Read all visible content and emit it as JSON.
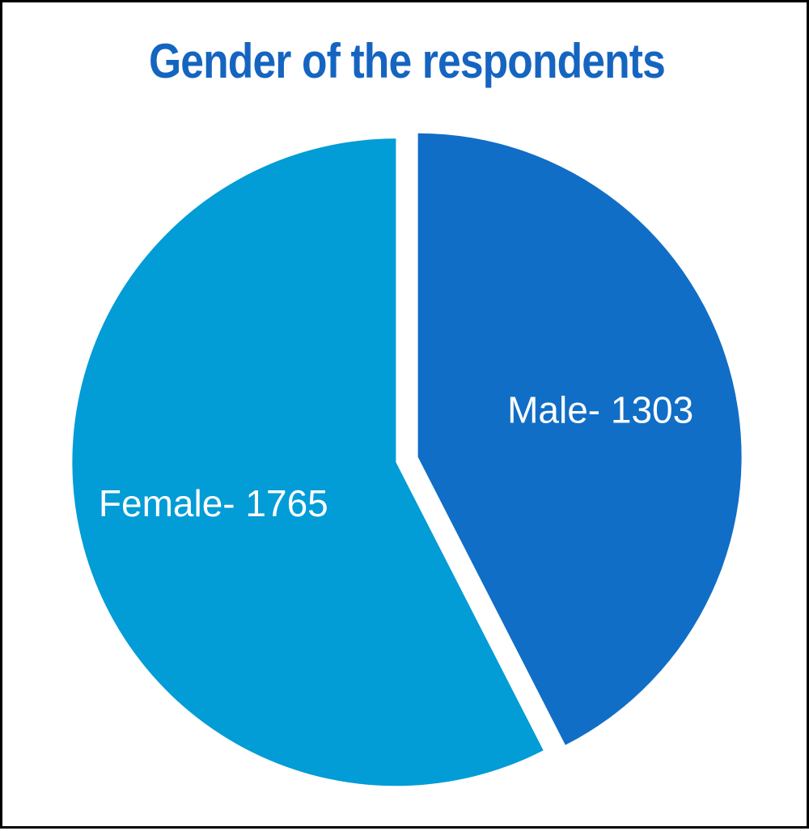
{
  "chart_data": {
    "type": "pie",
    "title": "Gender of the respondents",
    "slices": [
      {
        "label": "Male- 1303",
        "category": "Male",
        "value": 1303,
        "color": "#106EC6"
      },
      {
        "label": "Female- 1765",
        "category": "Female",
        "value": 1765,
        "color": "#029CD6"
      }
    ],
    "start_angle_deg": 0,
    "direction": "clockwise",
    "legend": "none",
    "title_color": "#1565C0"
  }
}
